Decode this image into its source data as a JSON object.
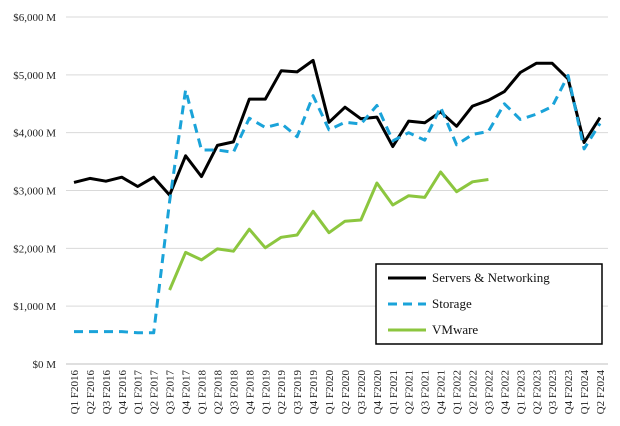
{
  "chart_data": {
    "type": "line",
    "title": "",
    "xlabel": "",
    "ylabel": "",
    "ylim": [
      0,
      6000
    ],
    "y_ticks": [
      {
        "value": 0,
        "label": "$0 M"
      },
      {
        "value": 1000,
        "label": "$1,000 M"
      },
      {
        "value": 2000,
        "label": "$2,000 M"
      },
      {
        "value": 3000,
        "label": "$3,000 M"
      },
      {
        "value": 4000,
        "label": "$4,000 M"
      },
      {
        "value": 5000,
        "label": "$5,000 M"
      },
      {
        "value": 6000,
        "label": "$6,000 M"
      }
    ],
    "grid": "horizontal",
    "legend_position": "lower-right",
    "categories": [
      "Q1 F2016",
      "Q2 F2016",
      "Q3 F2016",
      "Q4 F2016",
      "Q1 F2017",
      "Q2 F2017",
      "Q3 F2017",
      "Q4 F2017",
      "Q1 F2018",
      "Q2 F2018",
      "Q3 F2018",
      "Q4 F2018",
      "Q1 F2019",
      "Q2 F2019",
      "Q3 F2019",
      "Q4 F2019",
      "Q1 F2020",
      "Q2 F2020",
      "Q3 F2020",
      "Q4 F2020",
      "Q1 F2021",
      "Q2 F2021",
      "Q3 F2021",
      "Q4 F2021",
      "Q1 F2022",
      "Q2 F2022",
      "Q3 F2022",
      "Q4 F2022",
      "Q1 F2023",
      "Q2 F2023",
      "Q3 F2023",
      "Q4 F2023",
      "Q1 F2024",
      "Q2 F2024"
    ],
    "series": [
      {
        "name": "Servers & Networking",
        "color": "#000000",
        "style": "solid",
        "values": [
          3140,
          3210,
          3160,
          3230,
          3070,
          3230,
          2920,
          3600,
          3240,
          3780,
          3840,
          4580,
          4580,
          5070,
          5050,
          5250,
          4180,
          4440,
          4240,
          4270,
          3760,
          4200,
          4170,
          4360,
          4110,
          4460,
          4560,
          4710,
          5040,
          5200,
          5200,
          4930,
          3830,
          4260
        ]
      },
      {
        "name": "Storage",
        "color": "#1aa3d9",
        "style": "dashed",
        "values": [
          560,
          560,
          560,
          560,
          540,
          540,
          2810,
          4740,
          3700,
          3700,
          3660,
          4250,
          4090,
          4160,
          3930,
          4640,
          4050,
          4180,
          4150,
          4470,
          3860,
          4000,
          3870,
          4440,
          3790,
          3970,
          4020,
          4500,
          4230,
          4320,
          4450,
          4990,
          3720,
          4160
        ]
      },
      {
        "name": "VMware",
        "color": "#8cc63f",
        "style": "solid",
        "values": [
          null,
          null,
          null,
          null,
          null,
          null,
          1280,
          1930,
          1800,
          1990,
          1950,
          2330,
          2010,
          2190,
          2230,
          2640,
          2270,
          2470,
          2490,
          3130,
          2750,
          2910,
          2880,
          3320,
          2980,
          3150,
          3190,
          null,
          null,
          null,
          null,
          null,
          null,
          null
        ]
      }
    ]
  }
}
